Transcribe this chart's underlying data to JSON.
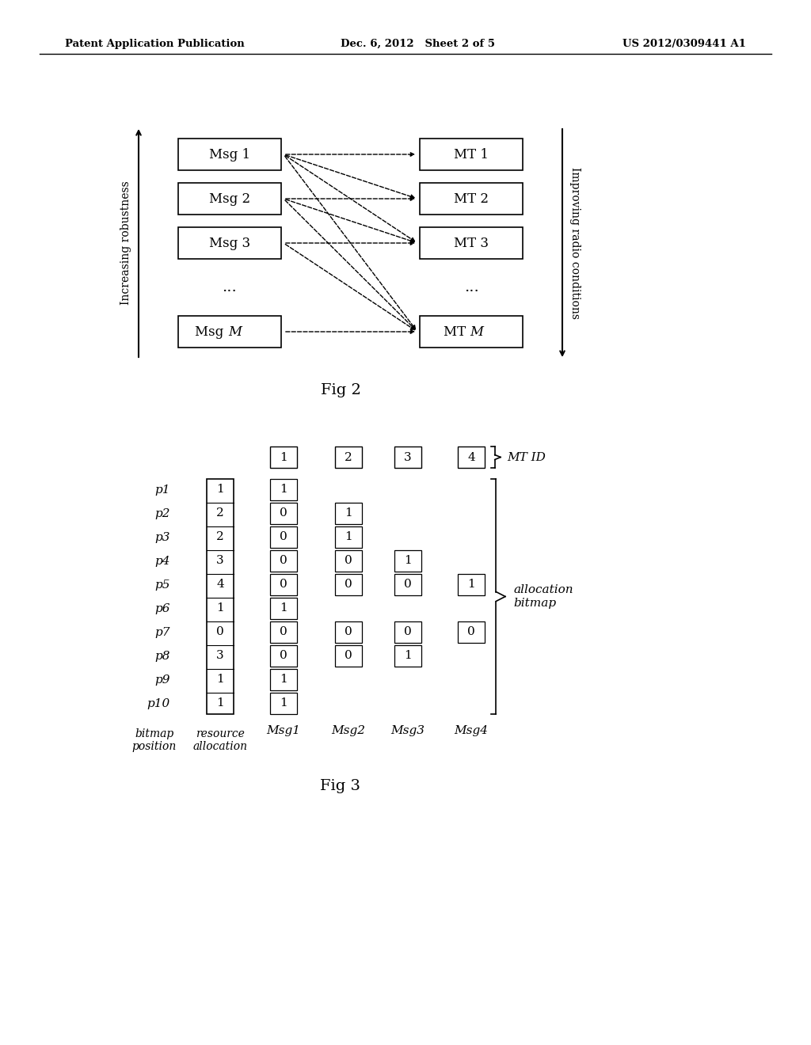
{
  "bg_color": "#ffffff",
  "header_left": "Patent Application Publication",
  "header_mid": "Dec. 6, 2012   Sheet 2 of 5",
  "header_right": "US 2012/0309441 A1",
  "fig2_caption": "Fig 2",
  "fig3_caption": "Fig 3",
  "fig2": {
    "left_boxes": [
      "Msg 1",
      "Msg 2",
      "Msg 3",
      "...",
      "Msg M"
    ],
    "right_boxes": [
      "MT 1",
      "MT 2",
      "MT 3",
      "...",
      "MT M"
    ],
    "left_axis_label": "Increasing robustness",
    "right_axis_label": "Improving radio conditions",
    "arrows": [
      [
        0,
        0
      ],
      [
        0,
        1
      ],
      [
        0,
        2
      ],
      [
        0,
        4
      ],
      [
        1,
        1
      ],
      [
        1,
        2
      ],
      [
        1,
        4
      ],
      [
        2,
        2
      ],
      [
        2,
        4
      ],
      [
        4,
        4
      ]
    ]
  },
  "fig3": {
    "bitmap_positions": [
      "p1",
      "p2",
      "p3",
      "p4",
      "p5",
      "p6",
      "p7",
      "p8",
      "p9",
      "p10"
    ],
    "resource_alloc": [
      1,
      2,
      2,
      3,
      4,
      1,
      0,
      3,
      1,
      1
    ],
    "msg_headers": [
      "1",
      "2",
      "3",
      "4"
    ],
    "msg_labels": [
      "Msg1",
      "Msg2",
      "Msg3",
      "Msg4"
    ],
    "mt_id_label": "MT ID",
    "alloc_bitmap_label": "allocation\nbitmap",
    "bitmap_pos_label": "bitmap\nposition",
    "resource_alloc_label": "resource\nallocation",
    "msg1_data": [
      1,
      0,
      0,
      0,
      0,
      1,
      0,
      0,
      1,
      1
    ],
    "msg2_data": [
      null,
      1,
      1,
      0,
      0,
      null,
      0,
      0,
      null,
      null
    ],
    "msg3_data": [
      null,
      null,
      null,
      1,
      0,
      null,
      0,
      1,
      null,
      null
    ],
    "msg4_data": [
      null,
      null,
      null,
      null,
      1,
      null,
      0,
      null,
      null,
      null
    ]
  }
}
